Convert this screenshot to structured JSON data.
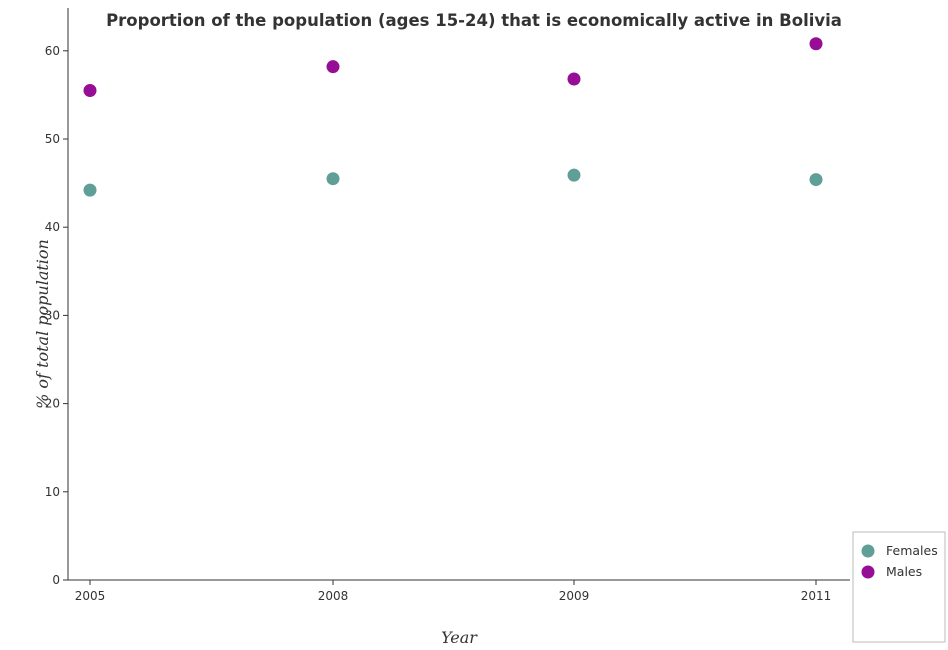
{
  "colors": {
    "females": "#5f9f97",
    "males": "#960d96",
    "axis": "#333333",
    "frame": "#bbbbbb"
  },
  "chart_data": {
    "type": "scatter",
    "title": "Proportion of the population (ages 15-24) that is economically active in Bolivia",
    "xlabel": "Year",
    "ylabel": "% of total population",
    "categories": [
      "2005",
      "2008",
      "2009",
      "2011"
    ],
    "ylim": [
      0,
      62
    ],
    "yticks": [
      "0",
      "10",
      "20",
      "30",
      "40",
      "50",
      "60"
    ],
    "grid": false,
    "legend_position": "bottom-right",
    "series": [
      {
        "name": "Females",
        "values": [
          44.2,
          45.5,
          45.9,
          45.4
        ]
      },
      {
        "name": "Males",
        "values": [
          55.5,
          58.2,
          56.8,
          60.8
        ]
      }
    ]
  }
}
